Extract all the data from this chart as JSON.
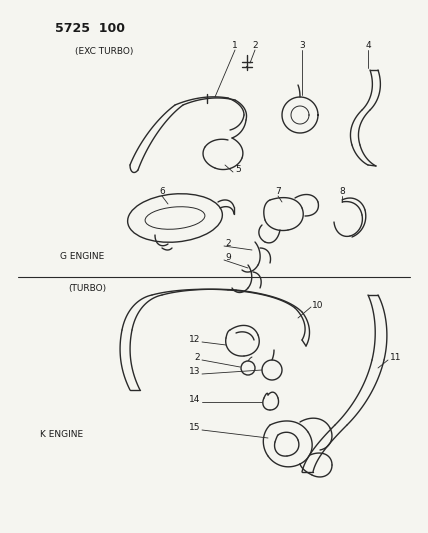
{
  "bg_color": "#f5f5f0",
  "line_color": "#2a2a2a",
  "text_color": "#1a1a1a",
  "title": "5725  100",
  "labels": {
    "exc_turbo": "(EXC TURBO)",
    "o_engine": "G ENGINE",
    "turbo": "(TURBO)",
    "k_engine": "K ENGINE"
  }
}
